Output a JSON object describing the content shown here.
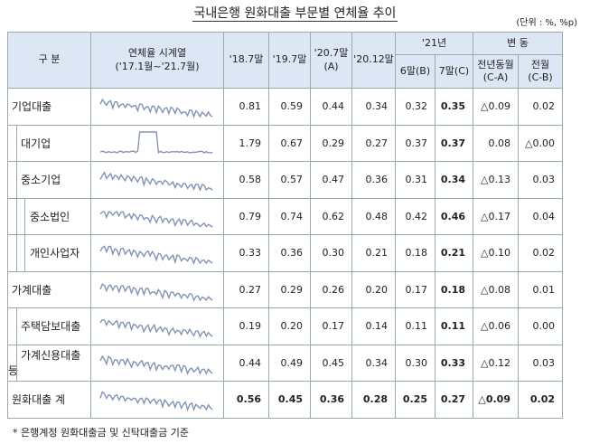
{
  "title": "국내은행 원화대출 부문별 연체율 추이",
  "unit": "(단위 : %, %p)",
  "header": {
    "category": "구 분",
    "series": "연체율 시계열",
    "series_range": "('17.1월~'21.7월)",
    "col_2018": "'18.7말",
    "col_2019": "'19.7말",
    "col_2020": "'20.7말",
    "col_2020_tag": "(A)",
    "col_2020_12": "'20.12말",
    "year_2021": "'21년",
    "jun": "6말(B)",
    "jul": "7말(C)",
    "change": "변 동",
    "yoy": "전년동월",
    "yoy_tag": "(C-A)",
    "mom": "전월",
    "mom_tag": "(C-B)"
  },
  "table": {
    "rows": [
      {
        "label": "기업대출",
        "level": 0,
        "cells": [
          "0.81",
          "0.59",
          "0.44",
          "0.34",
          "0.32",
          "0.35",
          "△0.09",
          "0.02"
        ]
      },
      {
        "label": "대기업",
        "level": 1,
        "cells": [
          "1.79",
          "0.67",
          "0.29",
          "0.27",
          "0.37",
          "0.37",
          "0.08",
          "△0.00"
        ]
      },
      {
        "label": "중소기업",
        "level": 1,
        "cells": [
          "0.58",
          "0.57",
          "0.47",
          "0.36",
          "0.31",
          "0.34",
          "△0.13",
          "0.03"
        ]
      },
      {
        "label": "중소법인",
        "level": 2,
        "cells": [
          "0.79",
          "0.74",
          "0.62",
          "0.48",
          "0.42",
          "0.46",
          "△0.17",
          "0.04"
        ]
      },
      {
        "label": "개인사업자",
        "level": 2,
        "cells": [
          "0.33",
          "0.36",
          "0.30",
          "0.21",
          "0.18",
          "0.21",
          "△0.10",
          "0.02"
        ]
      },
      {
        "label": "가계대출",
        "level": 0,
        "cells": [
          "0.27",
          "0.29",
          "0.26",
          "0.20",
          "0.17",
          "0.18",
          "△0.08",
          "0.01"
        ]
      },
      {
        "label": "주택담보대출",
        "level": 1,
        "cells": [
          "0.19",
          "0.20",
          "0.17",
          "0.14",
          "0.11",
          "0.11",
          "△0.06",
          "0.00"
        ]
      },
      {
        "label": "가계신용대출 등",
        "level": 1,
        "cells": [
          "0.44",
          "0.49",
          "0.45",
          "0.34",
          "0.30",
          "0.33",
          "△0.12",
          "0.03"
        ]
      },
      {
        "label": "원화대출 계",
        "level": 0,
        "total": true,
        "cells": [
          "0.56",
          "0.45",
          "0.36",
          "0.28",
          "0.25",
          "0.27",
          "△0.09",
          "0.02"
        ]
      }
    ]
  },
  "footnote": "* 은행계정 원화대출금 및 신탁대출금 기준"
}
